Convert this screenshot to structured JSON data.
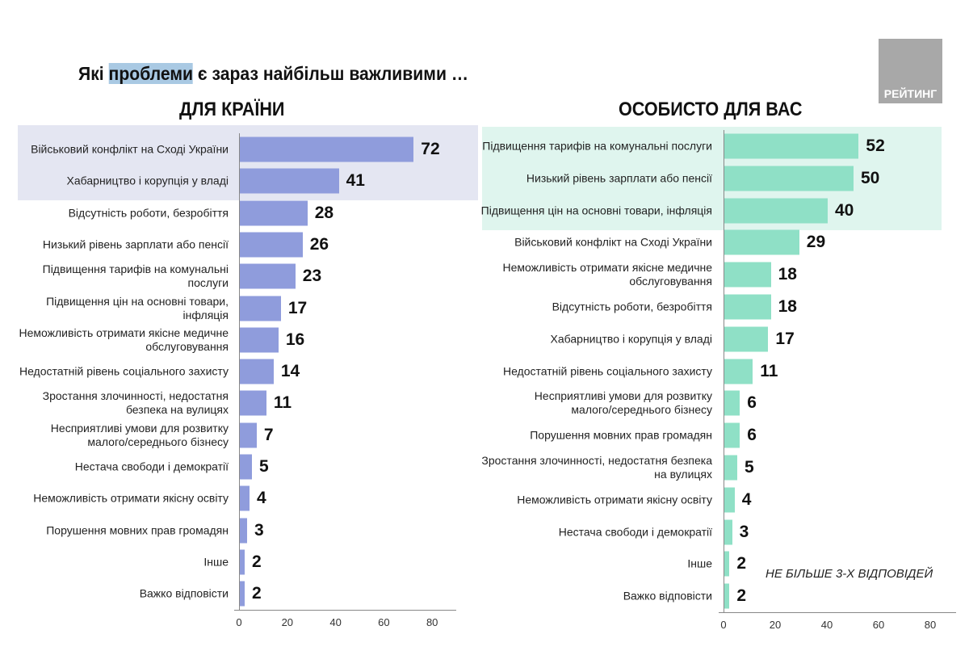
{
  "title": {
    "before": "Які ",
    "highlight": "проблеми",
    "after": " є зараз найбільш важливими …"
  },
  "logo": {
    "text": "РЕЙТИНГ"
  },
  "note": "НЕ БІЛЬШЕ 3-Х ВІДПОВІДЕЙ",
  "colors": {
    "left_bar": "#8f9cdc",
    "right_bar": "#8fe0c6",
    "left_highlight": "#e4e6f2",
    "right_highlight": "#dff5ee"
  },
  "chart_data": [
    {
      "type": "bar",
      "orientation": "horizontal",
      "title": "ДЛЯ КРАЇНИ",
      "xlim": [
        0,
        90
      ],
      "xticks": [
        "0",
        "20",
        "40",
        "60",
        "80"
      ],
      "highlighted_rows": 2,
      "categories": [
        "Військовий конфлікт на Сході України",
        "Хабарництво і корупція у владі",
        "Відсутність роботи, безробіття",
        "Низький рівень зарплати або пенсії",
        "Підвищення тарифів на комунальні\nпослуги",
        "Підвищення цін на основні товари,\nінфляція",
        "Неможливість отримати якісне медичне\nобслуговування",
        "Недостатній рівень соціального захисту",
        "Зростання злочинності, недостатня\nбезпека на вулицях",
        "Несприятливі умови для розвитку\nмалого/середнього бізнесу",
        "Нестача свободи і демократії",
        "Неможливість отримати якісну освіту",
        "Порушення мовних прав громадян",
        "Інше",
        "Важко відповісти"
      ],
      "values": [
        72,
        41,
        28,
        26,
        23,
        17,
        16,
        14,
        11,
        7,
        5,
        4,
        3,
        2,
        2
      ]
    },
    {
      "type": "bar",
      "orientation": "horizontal",
      "title": "ОСОБИСТО ДЛЯ ВАС",
      "xlim": [
        0,
        90
      ],
      "xticks": [
        "0",
        "20",
        "40",
        "60",
        "80"
      ],
      "highlighted_rows": 3,
      "categories": [
        "Підвищення тарифів на комунальні послуги",
        "Низький рівень зарплати або пенсії",
        "Підвищення цін на основні товари, інфляція",
        "Військовий конфлікт на Сході України",
        "Неможливість отримати якісне медичне\nобслуговування",
        "Відсутність роботи, безробіття",
        "Хабарництво і корупція у владі",
        "Недостатній рівень соціального захисту",
        "Несприятливі умови для розвитку\nмалого/середнього бізнесу",
        "Порушення мовних прав громадян",
        "Зростання злочинності, недостатня безпека\nна вулицях",
        "Неможливість отримати якісну освіту",
        "Нестача свободи і демократії",
        "Інше",
        "Важко відповісти"
      ],
      "values": [
        52,
        50,
        40,
        29,
        18,
        18,
        17,
        11,
        6,
        6,
        5,
        4,
        3,
        2,
        2
      ]
    }
  ]
}
